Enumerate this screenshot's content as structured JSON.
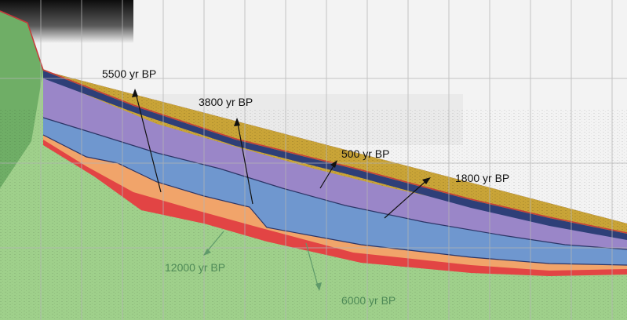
{
  "colors": {
    "sky": "#f3f3f3",
    "noise_top": "#101010",
    "grid": "#b4b4b4",
    "basement_green": "#9fd08b",
    "layer_navy": "#2e3f78",
    "layer_gold": "#c9a437",
    "layer_violet": "#9a86c8",
    "layer_blue": "#6f97cf",
    "layer_orange": "#f1a46a",
    "layer_red": "#e24444",
    "arrow_dark": "#111111",
    "arrow_green": "#5f9a6a"
  },
  "labels": [
    {
      "id": "age-5500",
      "text": "5500 yr BP",
      "tone": "dark"
    },
    {
      "id": "age-3800",
      "text": "3800 yr BP",
      "tone": "dark"
    },
    {
      "id": "age-500",
      "text": "500 yr BP",
      "tone": "dark"
    },
    {
      "id": "age-1800",
      "text": "1800 yr BP",
      "tone": "dark"
    },
    {
      "id": "age-12000",
      "text": "12000 yr BP",
      "tone": "green"
    },
    {
      "id": "age-6000",
      "text": "6000 yr BP",
      "tone": "green"
    }
  ],
  "grid_on": true
}
